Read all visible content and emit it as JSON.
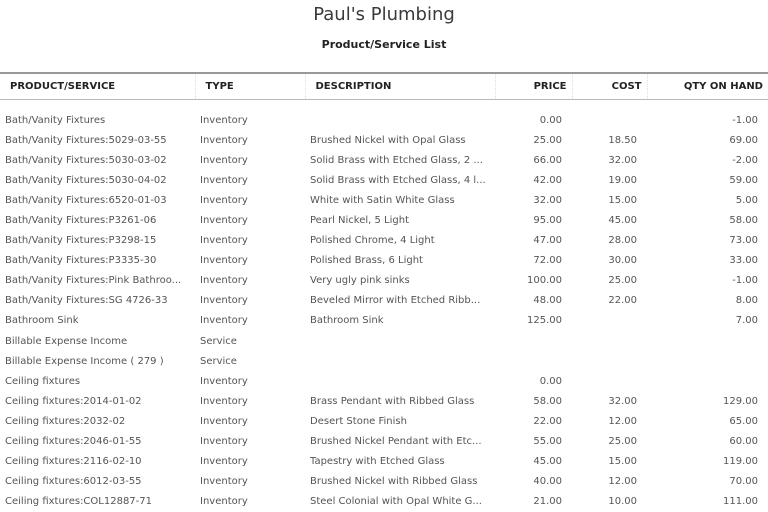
{
  "company": "Paul's Plumbing",
  "report_title": "Product/Service List",
  "columns": [
    "PRODUCT/SERVICE",
    "TYPE",
    "DESCRIPTION",
    "PRICE",
    "COST",
    "QTY ON HAND"
  ],
  "rows": [
    [
      "Bath/Vanity Fixtures",
      "Inventory",
      "",
      "0.00",
      "",
      "-1.00"
    ],
    [
      "Bath/Vanity Fixtures:5029-03-55",
      "Inventory",
      "Brushed Nickel with Opal Glass",
      "25.00",
      "18.50",
      "69.00"
    ],
    [
      "Bath/Vanity Fixtures:5030-03-02",
      "Inventory",
      "Solid Brass with Etched Glass, 2 ...",
      "66.00",
      "32.00",
      "-2.00"
    ],
    [
      "Bath/Vanity Fixtures:5030-04-02",
      "Inventory",
      "Solid Brass with Etched Glass, 4 l...",
      "42.00",
      "19.00",
      "59.00"
    ],
    [
      "Bath/Vanity Fixtures:6520-01-03",
      "Inventory",
      "White with Satin White Glass",
      "32.00",
      "15.00",
      "5.00"
    ],
    [
      "Bath/Vanity Fixtures:P3261-06",
      "Inventory",
      "Pearl Nickel, 5 Light",
      "95.00",
      "45.00",
      "58.00"
    ],
    [
      "Bath/Vanity Fixtures:P3298-15",
      "Inventory",
      "Polished Chrome, 4 Light",
      "47.00",
      "28.00",
      "73.00"
    ],
    [
      "Bath/Vanity Fixtures:P3335-30",
      "Inventory",
      "Polished Brass, 6 Light",
      "72.00",
      "30.00",
      "33.00"
    ],
    [
      "Bath/Vanity Fixtures:Pink Bathroo...",
      "Inventory",
      "Very ugly pink sinks",
      "100.00",
      "25.00",
      "-1.00"
    ],
    [
      "Bath/Vanity Fixtures:SG 4726-33",
      "Inventory",
      "Beveled Mirror with Etched Ribb...",
      "48.00",
      "22.00",
      "8.00"
    ],
    [
      "Bathroom Sink",
      "Inventory",
      "Bathroom Sink",
      "125.00",
      "",
      "7.00"
    ],
    [
      "Billable Expense Income",
      "Service",
      "",
      "",
      "",
      ""
    ],
    [
      "Billable Expense Income ( 279 )",
      "Service",
      "",
      "",
      "",
      ""
    ],
    [
      "Ceiling fixtures",
      "Inventory",
      "",
      "0.00",
      "",
      ""
    ],
    [
      "Ceiling fixtures:2014-01-02",
      "Inventory",
      "Brass Pendant with Ribbed Glass",
      "58.00",
      "32.00",
      "129.00"
    ],
    [
      "Ceiling fixtures:2032-02",
      "Inventory",
      "Desert Stone Finish",
      "22.00",
      "12.00",
      "65.00"
    ],
    [
      "Ceiling fixtures:2046-01-55",
      "Inventory",
      "Brushed Nickel Pendant with Etc...",
      "55.00",
      "25.00",
      "60.00"
    ],
    [
      "Ceiling fixtures:2116-02-10",
      "Inventory",
      "Tapestry with Etched Glass",
      "45.00",
      "15.00",
      "119.00"
    ],
    [
      "Ceiling fixtures:6012-03-55",
      "Inventory",
      "Brushed Nickel with Ribbed Glass",
      "40.00",
      "12.00",
      "70.00"
    ],
    [
      "Ceiling fixtures:COL12887-71",
      "Inventory",
      "Steel Colonial with Opal White G...",
      "21.00",
      "10.00",
      "111.00"
    ]
  ]
}
